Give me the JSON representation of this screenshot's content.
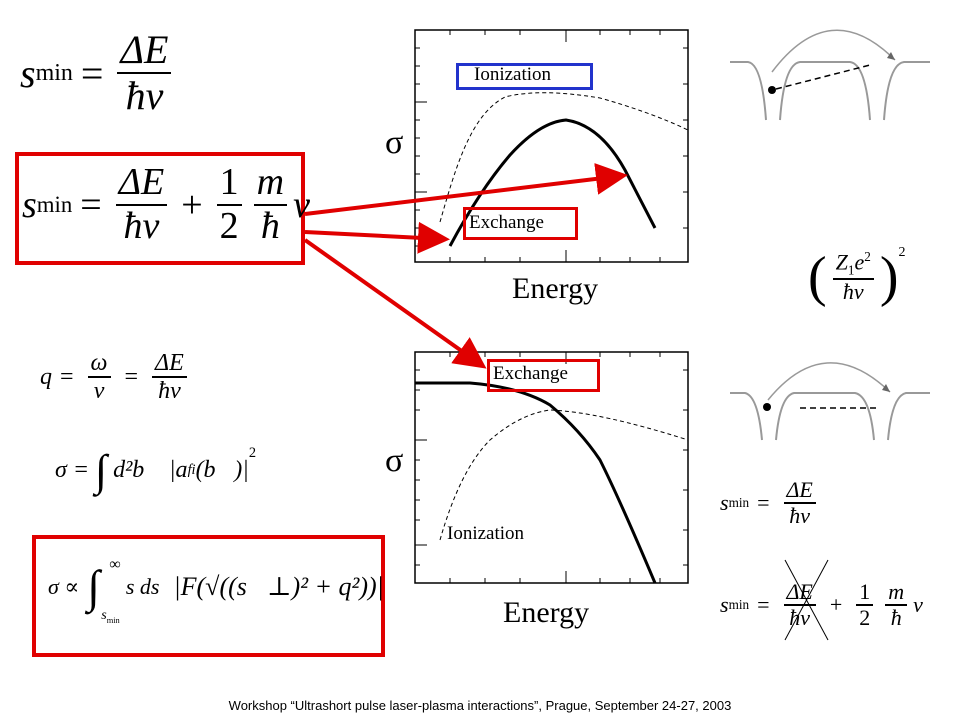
{
  "top_formula": {
    "s": "s",
    "sub": "min",
    "eq": "=",
    "num": "ΔE",
    "den": "ħv"
  },
  "boxed_formula": {
    "s": "s",
    "sub": "min",
    "eq": "=",
    "num1": "ΔE",
    "den1": "ħv",
    "plus": "+",
    "num2": "1",
    "den2": "2",
    "num3": "m",
    "den3": "ħ",
    "v": "v"
  },
  "q_formula": {
    "q": "q",
    "eq1": "=",
    "num1": "ω",
    "den1": "v",
    "eq2": "=",
    "num2": "ΔE",
    "den2": "ħv"
  },
  "sigma_formula": {
    "lhs": "σ =",
    "integral": "∫",
    "body": "d²b⃗ |a",
    "sub": "fi",
    "arg": "(b⃗)|",
    "sup": "2"
  },
  "sigma_prop_formula": {
    "lhs": "σ ∝",
    "integral": "∫",
    "upper": "∞",
    "lower_s": "s",
    "lower_sub": "min",
    "body": "s ds",
    "func": "|F(√((s⃗⊥)² + q²))|"
  },
  "coupling_formula": {
    "open": "(",
    "z": "Z",
    "z_sub": "1",
    "e": "e",
    "e_sup": "2",
    "den": "ħv",
    "close": ")",
    "sup": "2"
  },
  "right_formula_1": {
    "s": "s",
    "sub": "min",
    "eq": "=",
    "num": "ΔE",
    "den": "ħv"
  },
  "right_formula_2": {
    "s": "s",
    "sub": "min",
    "eq": "=",
    "num1": "ΔE",
    "den1": "ħv",
    "plus": "+",
    "num2": "1",
    "den2": "2",
    "num3": "m",
    "den3": "ħ",
    "v": "v"
  },
  "top_plot": {
    "y_label": "σ",
    "x_label": "Energy",
    "ionization": "Ionization",
    "exchange": "Exchange"
  },
  "bottom_plot": {
    "y_label": "σ",
    "x_label": "Energy",
    "ionization": "Ionization",
    "exchange": "Exchange"
  },
  "footer": "Workshop “Ultrashort pulse laser-plasma interactions”, Prague, September 24-27, 2003"
}
